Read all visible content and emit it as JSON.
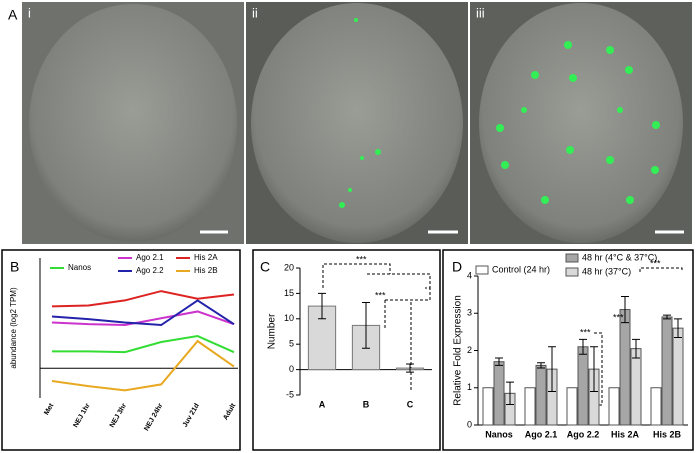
{
  "panels": {
    "A": {
      "label": "A",
      "sublabels": [
        "i",
        "ii",
        "iii"
      ]
    },
    "B": {
      "label": "B"
    },
    "C": {
      "label": "C"
    },
    "D": {
      "label": "D"
    }
  },
  "chart_data": [
    {
      "type": "line",
      "ylabel": "abundance (log2 TPM)",
      "categories": [
        "Met",
        "NEJ 1hr",
        "NEJ 3hr",
        "NEJ 24hr",
        "Juv 21d",
        "Adult"
      ],
      "ylim": [
        -3.5,
        13
      ],
      "series": [
        {
          "name": "Nanos",
          "color": "#33dd33",
          "values": [
            2.0,
            2.0,
            1.9,
            3.1,
            3.8,
            1.9
          ]
        },
        {
          "name": "Ago 2.1",
          "color": "#cc33cc",
          "values": [
            5.4,
            5.2,
            5.1,
            5.9,
            6.7,
            5.2
          ]
        },
        {
          "name": "Ago 2.2",
          "color": "#2222aa",
          "values": [
            6.1,
            5.8,
            5.4,
            5.1,
            8.0,
            5.2
          ]
        },
        {
          "name": "His 2A",
          "color": "#dd2222",
          "values": [
            7.3,
            7.4,
            8.0,
            9.1,
            8.2,
            8.7
          ]
        },
        {
          "name": "His 2B",
          "color": "#e8a820",
          "values": [
            -1.5,
            -2.1,
            -2.6,
            -1.9,
            3.2,
            0.2
          ]
        }
      ]
    },
    {
      "type": "bar",
      "ylabel": "Number",
      "categories": [
        "A",
        "B",
        "C"
      ],
      "values": [
        12.5,
        8.7,
        0.3
      ],
      "errors": [
        2.5,
        4.5,
        0.8
      ],
      "color": "#d9d9d9",
      "ylim": [
        -5,
        20
      ],
      "yticks": [
        -5,
        0,
        5,
        10,
        15,
        20
      ],
      "annotations": [
        "***",
        "***"
      ]
    },
    {
      "type": "bar",
      "ylabel": "Relative Fold Expression",
      "categories": [
        "Nanos",
        "Ago 2.1",
        "Ago 2.2",
        "His 2A",
        "His 2B"
      ],
      "ylim": [
        0,
        4
      ],
      "yticks": [
        0,
        1,
        2,
        3,
        4
      ],
      "series": [
        {
          "name": "Control (24 hr)",
          "color": "#ffffff",
          "values": [
            1,
            1,
            1,
            1,
            1
          ]
        },
        {
          "name": "48 hr (4°C & 37°C)",
          "color": "#a6a6a6",
          "values": [
            1.7,
            1.6,
            2.1,
            3.1,
            2.9
          ],
          "errors": [
            0.1,
            0.07,
            0.2,
            0.35,
            0.05
          ]
        },
        {
          "name": "48 hr (37°C)",
          "color": "#d9d9d9",
          "values": [
            0.85,
            1.5,
            1.5,
            2.05,
            2.6
          ],
          "errors": [
            0.3,
            0.6,
            0.6,
            0.25,
            0.25
          ]
        }
      ],
      "annotations": [
        "***",
        "***",
        "***"
      ]
    }
  ]
}
